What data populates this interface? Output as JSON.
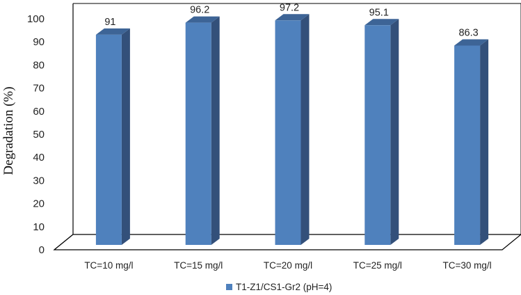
{
  "chart_data": {
    "type": "bar",
    "categories": [
      "TC=10 mg/l",
      "TC=15 mg/l",
      "TC=20 mg/l",
      "TC=25 mg/l",
      "TC=30 mg/l"
    ],
    "series": [
      {
        "name": "T1-Z1/CS1-Gr2 (pH=4)",
        "values": [
          91,
          96.2,
          97.2,
          95.1,
          86.3
        ]
      }
    ],
    "data_labels": [
      "91",
      "96.2",
      "97.2",
      "95.1",
      "86.3"
    ],
    "yticks": [
      "0",
      "10",
      "20",
      "30",
      "40",
      "50",
      "60",
      "70",
      "80",
      "90",
      "100"
    ],
    "title": "",
    "xlabel": "",
    "ylabel": "Degradation (%)",
    "ylim": [
      0,
      100
    ],
    "grid": false,
    "legend_position": "bottom",
    "colors": {
      "bar_front": "#4f81bd",
      "bar_side": "#33507a",
      "bar_top": "#3d6496",
      "axis": "#000000"
    }
  }
}
